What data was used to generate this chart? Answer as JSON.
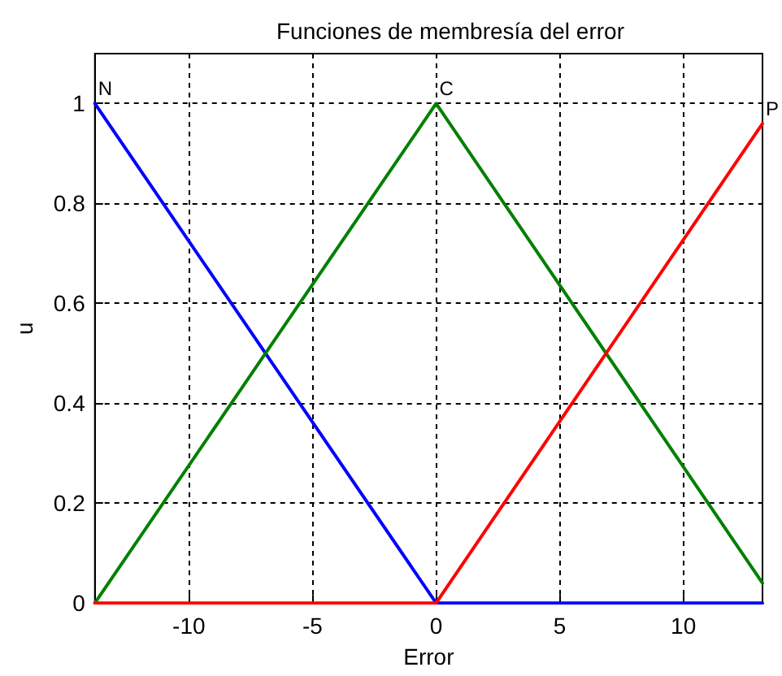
{
  "chart_data": {
    "type": "line",
    "title": "Funciones de membresía del error",
    "xlabel": "Error",
    "ylabel": "u",
    "x": [
      -13.8,
      0,
      13.2
    ],
    "series": [
      {
        "name": "N",
        "color": "#0000ff",
        "values": [
          1,
          0,
          0
        ]
      },
      {
        "name": "C",
        "color": "#008000",
        "values": [
          0,
          1,
          0.04
        ]
      },
      {
        "name": "P",
        "color": "#ff0000",
        "values": [
          0,
          0,
          0.96
        ]
      }
    ],
    "xlim": [
      -13.8,
      13.2
    ],
    "xticks": [
      -10,
      -5,
      0,
      5,
      10
    ],
    "ylim": [
      0,
      1.1
    ],
    "yticks": [
      0,
      0.2,
      0.4,
      0.6,
      0.8,
      1
    ],
    "grid": true,
    "legend": false,
    "marker": "none",
    "line_style": "solid"
  }
}
